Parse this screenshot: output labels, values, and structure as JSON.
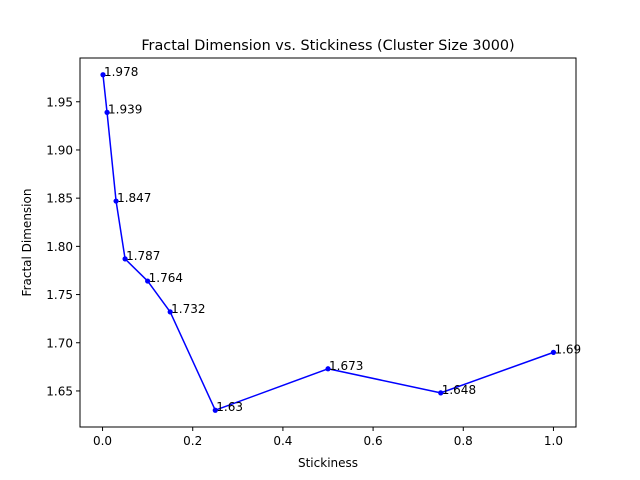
{
  "chart_data": {
    "type": "line",
    "title": "Fractal Dimension vs. Stickiness (Cluster Size 3000)",
    "xlabel": "Stickiness",
    "ylabel": "Fractal Dimension",
    "xlim": [
      -0.05,
      1.05
    ],
    "ylim": [
      1.6126,
      1.9954
    ],
    "grid": false,
    "x_ticks": [
      "0.0",
      "0.2",
      "0.4",
      "0.6",
      "0.8",
      "1.0"
    ],
    "x_tick_values": [
      0.0,
      0.2,
      0.4,
      0.6,
      0.8,
      1.0
    ],
    "y_ticks": [
      "1.65",
      "1.70",
      "1.75",
      "1.80",
      "1.85",
      "1.90",
      "1.95"
    ],
    "y_tick_values": [
      1.65,
      1.7,
      1.75,
      1.8,
      1.85,
      1.9,
      1.95
    ],
    "series": [
      {
        "color": "#0000ff",
        "x": [
          0.001,
          0.01,
          0.03,
          0.05,
          0.1,
          0.15,
          0.25,
          0.5,
          0.75,
          1.0
        ],
        "y": [
          1.978,
          1.939,
          1.847,
          1.787,
          1.764,
          1.732,
          1.63,
          1.673,
          1.648,
          1.69
        ],
        "labels": [
          "1.978",
          "1.939",
          "1.847",
          "1.787",
          "1.764",
          "1.732",
          "1.63",
          "1.673",
          "1.648",
          "1.69"
        ]
      }
    ]
  }
}
